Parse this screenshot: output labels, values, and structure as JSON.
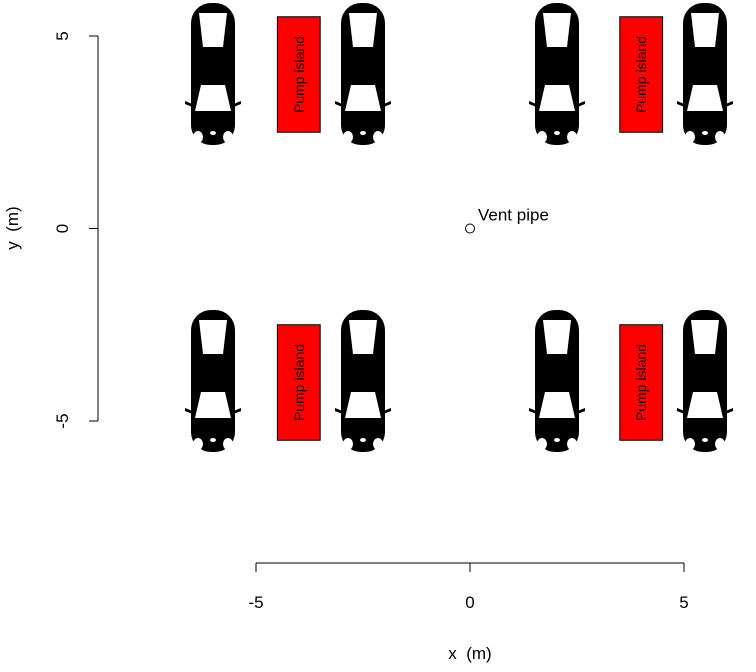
{
  "chart_data": {
    "type": "scatter",
    "x_label": "x  (m)",
    "y_label": "y  (m)",
    "xlim": [
      -5,
      5
    ],
    "ylim": [
      -5,
      5
    ],
    "xticks": [
      -5,
      0,
      5
    ],
    "yticks": [
      -5,
      0,
      5
    ],
    "points": [
      {
        "x": 0,
        "y": 0,
        "label": "Vent pipe"
      }
    ],
    "pump_color": "#ff0000",
    "pump_islands": [
      {
        "label": "Pump island",
        "xmin": -4.5,
        "xmax": -3.5,
        "ymin": 2.5,
        "ymax": 5.5
      },
      {
        "label": "Pump island",
        "xmin": 3.5,
        "xmax": 4.5,
        "ymin": 2.5,
        "ymax": 5.5
      },
      {
        "label": "Pump island",
        "xmin": -4.5,
        "xmax": -3.5,
        "ymin": -5.5,
        "ymax": -2.5
      },
      {
        "label": "Pump island",
        "xmin": 3.5,
        "xmax": 4.5,
        "ymin": -5.5,
        "ymax": -2.5
      }
    ]
  }
}
